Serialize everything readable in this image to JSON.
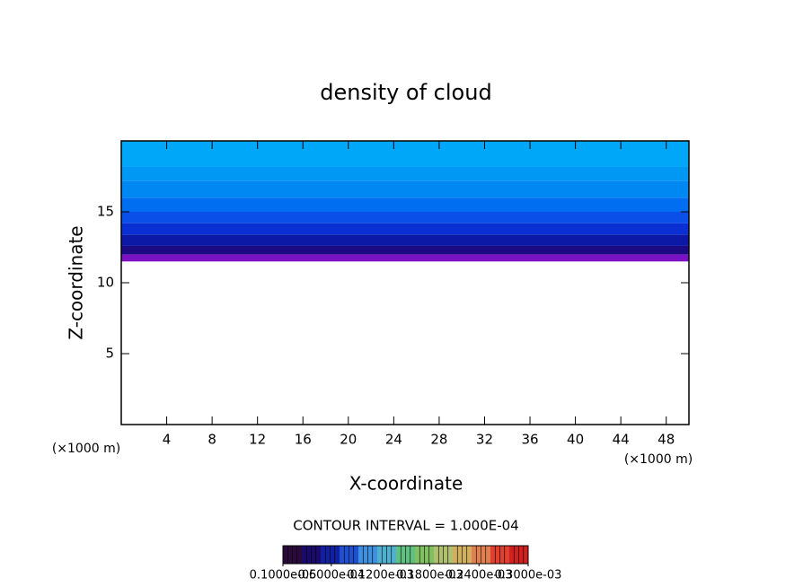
{
  "chart_data": {
    "type": "contour",
    "title": "density of cloud",
    "x_label": "X-coordinate",
    "y_label": "Z-coordinate",
    "x_unit": "(×1000 m)",
    "y_unit": "(×1000 m)",
    "xlim": [
      0,
      50
    ],
    "ylim": [
      0,
      20
    ],
    "xticks": [
      4,
      8,
      12,
      16,
      20,
      24,
      28,
      32,
      36,
      40,
      44,
      48
    ],
    "yticks": [
      5,
      10,
      15
    ],
    "bands": [
      {
        "bottom": 11.5,
        "top": 12.0,
        "color": "#7a12c4"
      },
      {
        "bottom": 12.0,
        "top": 12.6,
        "color": "#1c0a82"
      },
      {
        "bottom": 12.6,
        "top": 13.4,
        "color": "#0c18a6"
      },
      {
        "bottom": 13.4,
        "top": 14.2,
        "color": "#0a2fd2"
      },
      {
        "bottom": 14.2,
        "top": 15.0,
        "color": "#0a4fe8"
      },
      {
        "bottom": 15.0,
        "top": 16.0,
        "color": "#006ef0"
      },
      {
        "bottom": 16.0,
        "top": 17.2,
        "color": "#0088f2"
      },
      {
        "bottom": 17.2,
        "top": 18.2,
        "color": "#0098f2"
      },
      {
        "bottom": 18.2,
        "top": 20.0,
        "color": "#00a6f8"
      }
    ],
    "contour_interval": "CONTOUR INTERVAL = 1.000E-04",
    "colorbar": {
      "clim": [
        1e-06,
        0.0003
      ],
      "colors": [
        "#2a0a3a",
        "#1a0a6a",
        "#1020a0",
        "#2050d0",
        "#4090e0",
        "#50b0d0",
        "#60c080",
        "#80c060",
        "#b0c070",
        "#d0b060",
        "#e08050",
        "#e04030",
        "#d02020"
      ],
      "ticks": [
        {
          "value": 1e-06,
          "label": "0.1000e-05"
        },
        {
          "value": 6e-05,
          "label": "0.6000e-04"
        },
        {
          "value": 0.00012,
          "label": "0.1200e-03"
        },
        {
          "value": 0.00018,
          "label": "0.1800e-03"
        },
        {
          "value": 0.00024,
          "label": "0.2400e-03"
        },
        {
          "value": 0.0003,
          "label": "0.3000e-03"
        }
      ]
    }
  }
}
